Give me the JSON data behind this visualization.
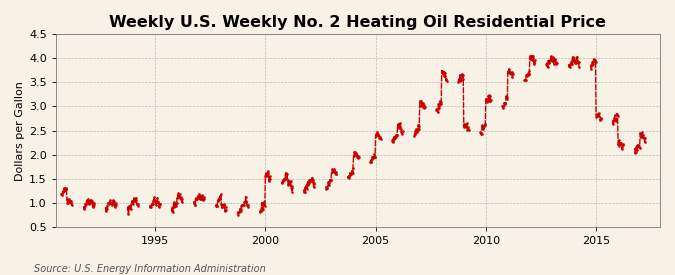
{
  "title": "Weekly U.S. Weekly No. 2 Heating Oil Residential Price",
  "ylabel": "Dollars per Gallon",
  "source": "Source: U.S. Energy Information Administration",
  "xlim": [
    1990.5,
    2017.9
  ],
  "ylim": [
    0.5,
    4.5
  ],
  "yticks": [
    0.5,
    1.0,
    1.5,
    2.0,
    2.5,
    3.0,
    3.5,
    4.0,
    4.5
  ],
  "xticks": [
    1995,
    2000,
    2005,
    2010,
    2015
  ],
  "line_color": "#cc0000",
  "background_color": "#f7f2e5",
  "grid_color": "#999999",
  "title_fontsize": 11.5,
  "label_fontsize": 8,
  "tick_fontsize": 8,
  "source_fontsize": 7
}
